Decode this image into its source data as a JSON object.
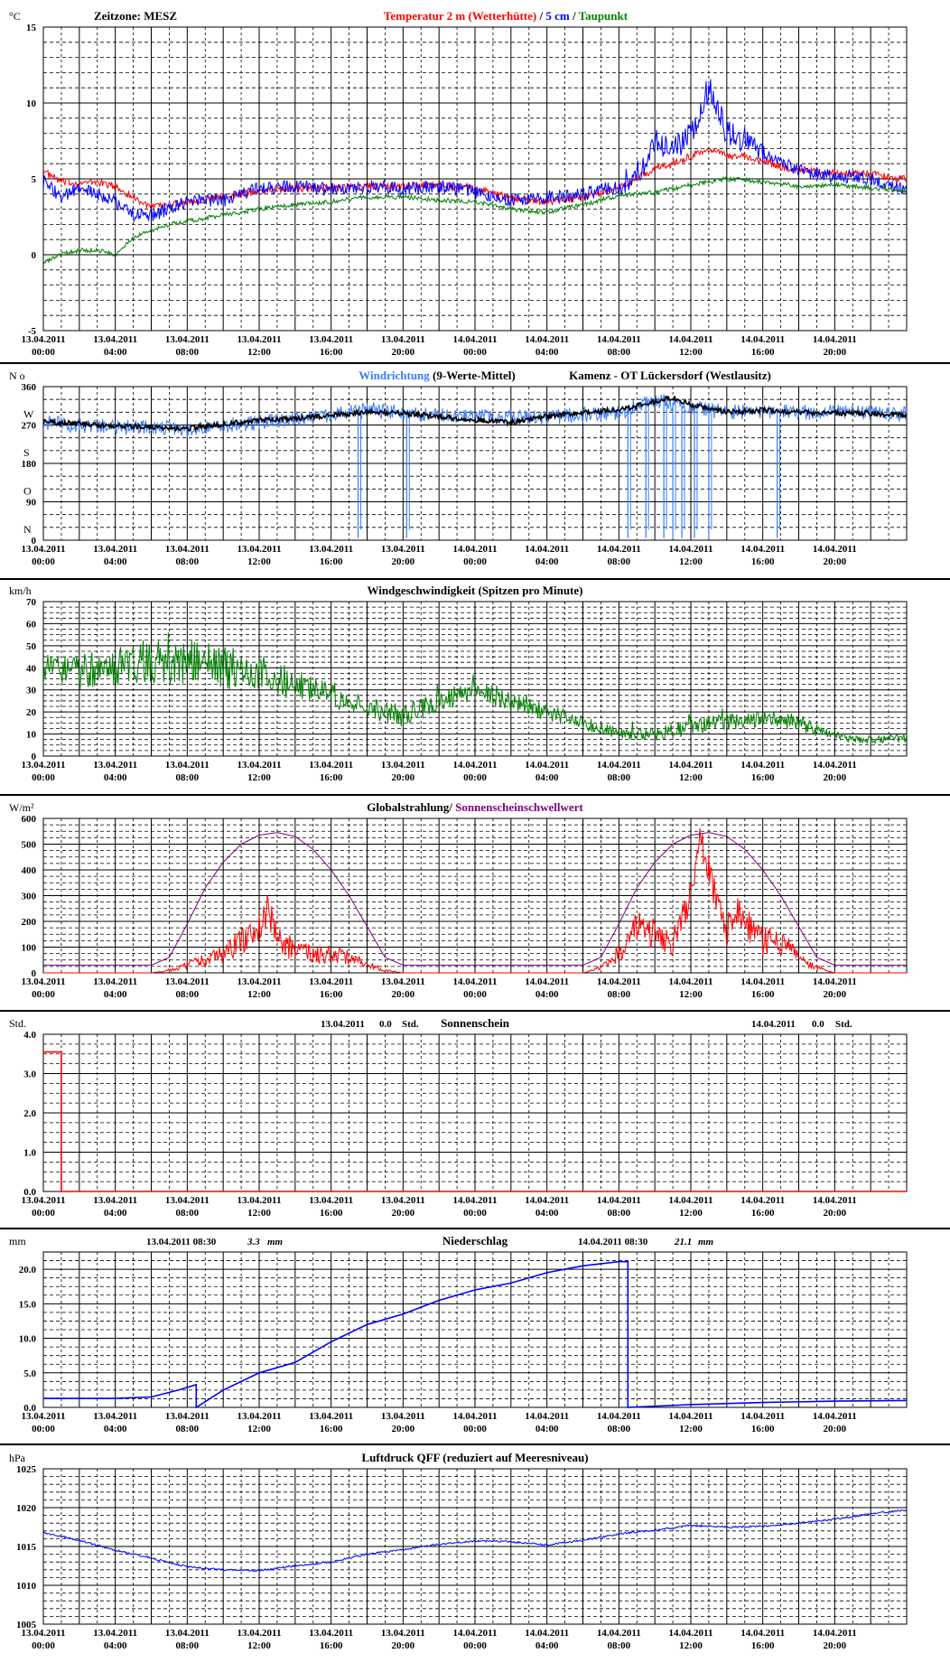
{
  "x_axis": {
    "labels": [
      {
        "date": "13.04.2011",
        "time": "00:00"
      },
      {
        "date": "13.04.2011",
        "time": "04:00"
      },
      {
        "date": "13.04.2011",
        "time": "08:00"
      },
      {
        "date": "13.04.2011",
        "time": "12:00"
      },
      {
        "date": "13.04.2011",
        "time": "16:00"
      },
      {
        "date": "13.04.2011",
        "time": "20:00"
      },
      {
        "date": "14.04.2011",
        "time": "00:00"
      },
      {
        "date": "14.04.2011",
        "time": "04:00"
      },
      {
        "date": "14.04.2011",
        "time": "08:00"
      },
      {
        "date": "14.04.2011",
        "time": "12:00"
      },
      {
        "date": "14.04.2011",
        "time": "16:00"
      },
      {
        "date": "14.04.2011",
        "time": "20:00"
      }
    ],
    "start": "13.04.2011 00:00",
    "end": "14.04.2011 24:00",
    "range_hours": [
      0,
      48
    ]
  },
  "colors": {
    "red": "#ff0000",
    "blue": "#0000ff",
    "green": "#008000",
    "light_blue": "#3a7bff",
    "black": "#000000",
    "purple": "#800080"
  },
  "chart_data": [
    {
      "id": "temperature",
      "type": "line",
      "unit": "°C",
      "timezone_label": "Zeitzone: MESZ",
      "title_parts": [
        {
          "text": "Temperatur 2 m (Wetterhütte)",
          "color": "#ff0000"
        },
        {
          "text": "  /  ",
          "color": "#000000"
        },
        {
          "text": "5 cm",
          "color": "#0000ff"
        },
        {
          "text": " / ",
          "color": "#000000"
        },
        {
          "text": "Taupunkt",
          "color": "#008000"
        }
      ],
      "ylim": [
        -5,
        15
      ],
      "yticks": [
        "15",
        "10",
        "5",
        "0",
        "-5"
      ],
      "series": [
        {
          "name": "Temperatur 2 m (Wetterhütte)",
          "color": "#ff0000",
          "x": [
            0,
            1,
            2,
            3,
            4,
            5,
            6,
            7,
            8,
            10,
            12,
            14,
            16,
            18,
            20,
            22,
            24,
            26,
            28,
            30,
            32,
            33,
            34,
            35,
            36,
            37,
            38,
            39,
            40,
            41,
            42,
            44,
            46,
            48
          ],
          "y": [
            5.5,
            4.8,
            4.7,
            4.8,
            4.5,
            3.8,
            3.1,
            3.3,
            3.5,
            3.8,
            4.2,
            4.4,
            4.4,
            4.5,
            4.5,
            4.6,
            4.4,
            3.7,
            3.5,
            3.8,
            4.4,
            5.0,
            5.7,
            6.0,
            6.5,
            7.0,
            6.5,
            6.5,
            6.2,
            5.8,
            5.6,
            5.4,
            5.3,
            5.0
          ]
        },
        {
          "name": "5 cm",
          "color": "#0000ff",
          "x": [
            0,
            1,
            2,
            3,
            4,
            5,
            6,
            7,
            8,
            10,
            12,
            14,
            16,
            18,
            20,
            22,
            24,
            26,
            28,
            30,
            32,
            33,
            34,
            35,
            36,
            37,
            37.5,
            38,
            39,
            40,
            41,
            42,
            44,
            46,
            48
          ],
          "y": [
            4.8,
            3.8,
            4.3,
            4.0,
            3.5,
            2.6,
            2.6,
            3.0,
            3.5,
            3.6,
            4.4,
            4.5,
            4.3,
            4.5,
            4.4,
            4.5,
            4.1,
            3.6,
            3.8,
            4.0,
            4.5,
            5.3,
            7.5,
            7.0,
            8.0,
            11.0,
            9.5,
            8.0,
            7.5,
            6.8,
            6.0,
            5.6,
            5.2,
            5.0,
            4.3
          ]
        },
        {
          "name": "Taupunkt",
          "color": "#008000",
          "x": [
            0,
            1,
            2,
            3,
            4,
            5,
            6,
            7,
            8,
            10,
            12,
            14,
            16,
            18,
            20,
            22,
            24,
            26,
            28,
            30,
            32,
            34,
            36,
            38,
            40,
            42,
            44,
            46,
            48
          ],
          "y": [
            -0.5,
            0.0,
            0.3,
            0.3,
            0.0,
            1.2,
            1.6,
            2.0,
            2.2,
            2.6,
            3.0,
            3.3,
            3.5,
            3.8,
            3.8,
            3.6,
            3.5,
            3.0,
            2.8,
            3.3,
            3.9,
            4.1,
            4.6,
            5.0,
            4.8,
            4.5,
            4.6,
            4.4,
            4.2
          ]
        }
      ]
    },
    {
      "id": "wind_direction",
      "type": "line",
      "unit": "N o",
      "title_parts": [
        {
          "text": "Windrichtung",
          "color": "#3a7bff"
        },
        {
          "text": " (9-Werte-Mittel)",
          "color": "#000000"
        }
      ],
      "station": "Kamenz - OT Lückersdorf (Westlausitz)",
      "ylim": [
        0,
        360
      ],
      "yticks": [
        "360",
        "270",
        "180",
        "90",
        "0"
      ],
      "compass_labels": [
        "W",
        "S",
        "O",
        "N"
      ],
      "series": [
        {
          "name": "Windrichtung",
          "color": "#3a7bff",
          "x": [
            0,
            4,
            8,
            12,
            16,
            18,
            20,
            24,
            28,
            32,
            34,
            36,
            38,
            40,
            44,
            48
          ],
          "y": [
            275,
            265,
            262,
            275,
            295,
            305,
            300,
            290,
            288,
            300,
            330,
            310,
            300,
            300,
            300,
            295
          ],
          "drops": [
            17.5,
            20.2,
            32.5,
            33.5,
            34.5,
            35.0,
            35.5,
            36.2,
            37.0,
            40.8
          ]
        },
        {
          "name": "9-Werte-Mittel",
          "color": "#000000",
          "x": [
            0,
            4,
            8,
            10,
            12,
            16,
            18,
            20,
            24,
            26,
            28,
            30,
            32,
            34,
            35,
            36,
            38,
            40,
            42,
            44,
            46,
            48
          ],
          "y": [
            278,
            268,
            262,
            272,
            280,
            292,
            300,
            298,
            282,
            276,
            290,
            300,
            305,
            325,
            335,
            318,
            300,
            305,
            300,
            298,
            298,
            292
          ]
        }
      ]
    },
    {
      "id": "wind_speed",
      "type": "line",
      "unit": "km/h",
      "title_parts": [
        {
          "text": "Windgeschwindigkeit (Spitzen pro Minute)",
          "color": "#000000"
        }
      ],
      "ylim": [
        0,
        70
      ],
      "yticks": [
        "70",
        "60",
        "50",
        "40",
        "30",
        "20",
        "10",
        "0"
      ],
      "series": [
        {
          "name": "Windgeschwindigkeit",
          "color": "#008000",
          "x": [
            0,
            2,
            4,
            6,
            8,
            10,
            12,
            14,
            16,
            18,
            20,
            22,
            24,
            26,
            28,
            30,
            32,
            34,
            36,
            38,
            40,
            42,
            44,
            46,
            48
          ],
          "y": [
            40,
            38,
            40,
            42,
            43,
            40,
            38,
            32,
            28,
            22,
            18,
            25,
            30,
            25,
            20,
            15,
            10,
            10,
            13,
            15,
            17,
            15,
            9,
            7,
            8
          ],
          "amplitude": [
            8,
            8,
            9,
            10,
            10,
            10,
            9,
            7,
            6,
            5,
            5,
            5,
            5,
            5,
            4,
            3,
            3,
            3,
            4,
            4,
            4,
            4,
            2,
            2,
            2
          ]
        }
      ]
    },
    {
      "id": "radiation",
      "type": "line",
      "unit": "W/m²",
      "title_parts": [
        {
          "text": "Globalstrahlung/ ",
          "color": "#000000"
        },
        {
          "text": "Sonnenscheinschwellwert",
          "color": "#800080"
        }
      ],
      "ylim": [
        0,
        600
      ],
      "yticks": [
        "600",
        "500",
        "400",
        "300",
        "200",
        "100",
        "0"
      ],
      "series": [
        {
          "name": "Globalstrahlung",
          "color": "#ff0000",
          "x": [
            0,
            6,
            7,
            8,
            9,
            10,
            11,
            12,
            12.5,
            13,
            14,
            15,
            16,
            17,
            18,
            19,
            20,
            30,
            31,
            32,
            33,
            34,
            35,
            36,
            36.5,
            37,
            37.5,
            38,
            38.5,
            39,
            40,
            41,
            42,
            43,
            44,
            48
          ],
          "y": [
            0,
            0,
            10,
            30,
            50,
            70,
            120,
            180,
            250,
            130,
            90,
            70,
            70,
            60,
            30,
            10,
            0,
            0,
            20,
            80,
            180,
            150,
            120,
            300,
            550,
            400,
            250,
            160,
            250,
            200,
            120,
            130,
            50,
            20,
            0,
            0
          ]
        },
        {
          "name": "Sonnenscheinschwellwert",
          "color": "#800080",
          "x": [
            0,
            6,
            7,
            8,
            9,
            10,
            11,
            12,
            13,
            14,
            15,
            16,
            17,
            18,
            19,
            20,
            30,
            31,
            32,
            33,
            34,
            35,
            36,
            37,
            38,
            39,
            40,
            41,
            42,
            43,
            44,
            48
          ],
          "y": [
            30,
            30,
            60,
            190,
            330,
            430,
            500,
            535,
            545,
            530,
            480,
            400,
            300,
            180,
            60,
            30,
            30,
            60,
            190,
            330,
            430,
            500,
            535,
            545,
            530,
            480,
            400,
            300,
            180,
            60,
            30,
            30
          ]
        }
      ]
    },
    {
      "id": "sunshine",
      "type": "line",
      "unit": "Std.",
      "title_parts": [
        {
          "text": "Sonnenschein",
          "color": "#000000"
        }
      ],
      "daily": [
        {
          "date": "13.04.2011",
          "value": "0.0",
          "unit": "Std."
        },
        {
          "date": "14.04.2011",
          "value": "0.0",
          "unit": "Std."
        }
      ],
      "ylim": [
        0,
        4
      ],
      "yticks": [
        "4.0",
        "3.0",
        "2.0",
        "1.0",
        "0.0"
      ],
      "series": [
        {
          "name": "Sonnenschein",
          "color": "#ff0000",
          "x": [
            0,
            1,
            1,
            48
          ],
          "y": [
            3.55,
            3.55,
            0,
            0
          ]
        }
      ]
    },
    {
      "id": "precipitation",
      "type": "line",
      "unit": "mm",
      "title_parts": [
        {
          "text": "Niederschlag",
          "color": "#000000"
        }
      ],
      "daily": [
        {
          "date": "13.04.2011 08:30",
          "value": "3.3",
          "unit": "mm"
        },
        {
          "date": "14.04.2011 08:30",
          "value": "21.1",
          "unit": "mm"
        }
      ],
      "ylim": [
        0,
        22.5
      ],
      "yticks": [
        "20.0",
        "15.0",
        "10.0",
        "5.0",
        "0.0"
      ],
      "series": [
        {
          "name": "Niederschlag",
          "color": "#0000ff",
          "x": [
            0,
            4,
            6,
            7.5,
            8.5,
            8.5,
            10,
            12,
            14,
            16,
            18,
            20,
            22,
            24,
            26,
            28,
            30,
            32,
            32.5,
            32.5,
            36,
            40,
            44,
            48
          ],
          "y": [
            1.3,
            1.3,
            1.5,
            2.5,
            3.3,
            0.0,
            2.5,
            5.0,
            6.5,
            9.5,
            12.0,
            13.5,
            15.5,
            17.0,
            18.0,
            19.5,
            20.5,
            21.1,
            21.1,
            0.0,
            0.4,
            0.7,
            0.9,
            1.0
          ]
        }
      ]
    },
    {
      "id": "pressure",
      "type": "line",
      "unit": "hPa",
      "title_parts": [
        {
          "text": "Luftdruck QFF (reduziert auf Meeresniveau)",
          "color": "#000000"
        }
      ],
      "ylim": [
        1005,
        1025
      ],
      "yticks": [
        "1025",
        "1020",
        "1015",
        "1010",
        "1005"
      ],
      "series": [
        {
          "name": "Luftdruck QFF",
          "color": "#0000ff",
          "x": [
            0,
            2,
            4,
            6,
            8,
            10,
            12,
            14,
            16,
            18,
            20,
            22,
            24,
            26,
            28,
            30,
            32,
            34,
            36,
            38,
            40,
            42,
            44,
            46,
            48
          ],
          "y": [
            1016.8,
            1015.8,
            1014.5,
            1013.5,
            1012.4,
            1012.0,
            1011.9,
            1012.5,
            1013.0,
            1014.0,
            1014.6,
            1015.3,
            1015.7,
            1015.6,
            1015.2,
            1015.8,
            1016.6,
            1017.1,
            1017.7,
            1017.5,
            1017.6,
            1018.0,
            1018.5,
            1019.2,
            1019.7
          ]
        }
      ]
    }
  ]
}
